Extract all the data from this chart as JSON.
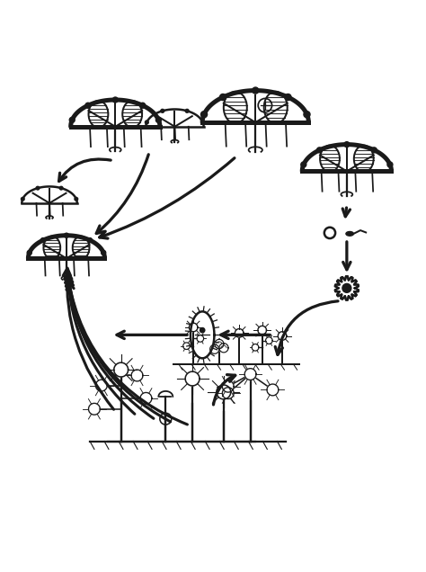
{
  "bg_color": "#ffffff",
  "line_color": "#1a1a1a",
  "arrow_color": "#1a1a1a",
  "lw": 1.8,
  "fig_width": 4.74,
  "fig_height": 6.36,
  "dpi": 100
}
